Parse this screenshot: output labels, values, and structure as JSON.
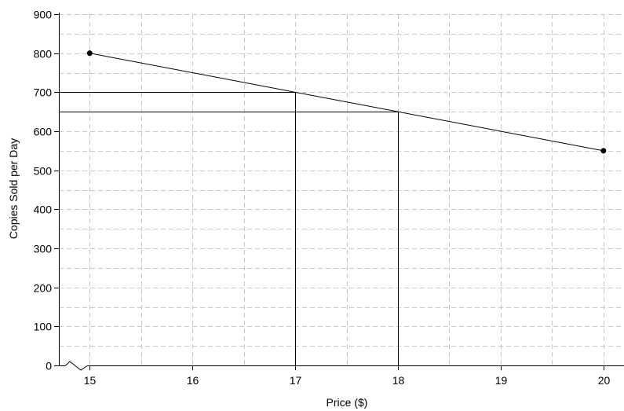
{
  "chart_data": {
    "type": "line",
    "title": "",
    "xlabel": "Price ($)",
    "ylabel": "Copies Sold per Day",
    "xlim": [
      14.7,
      20.2
    ],
    "ylim": [
      0,
      900
    ],
    "x_ticks": [
      15,
      16,
      17,
      18,
      19,
      20
    ],
    "y_ticks": [
      0,
      100,
      200,
      300,
      400,
      500,
      600,
      700,
      800,
      900
    ],
    "x_minor_step": 0.5,
    "y_minor_step": 50,
    "grid": true,
    "x_axis_break": true,
    "series": [
      {
        "x": [
          15,
          20
        ],
        "y": [
          800,
          550
        ],
        "endpoint_markers": true,
        "color": "#000000"
      }
    ],
    "reference_points": [
      {
        "x": 17,
        "y": 700
      },
      {
        "x": 18,
        "y": 650
      }
    ]
  }
}
